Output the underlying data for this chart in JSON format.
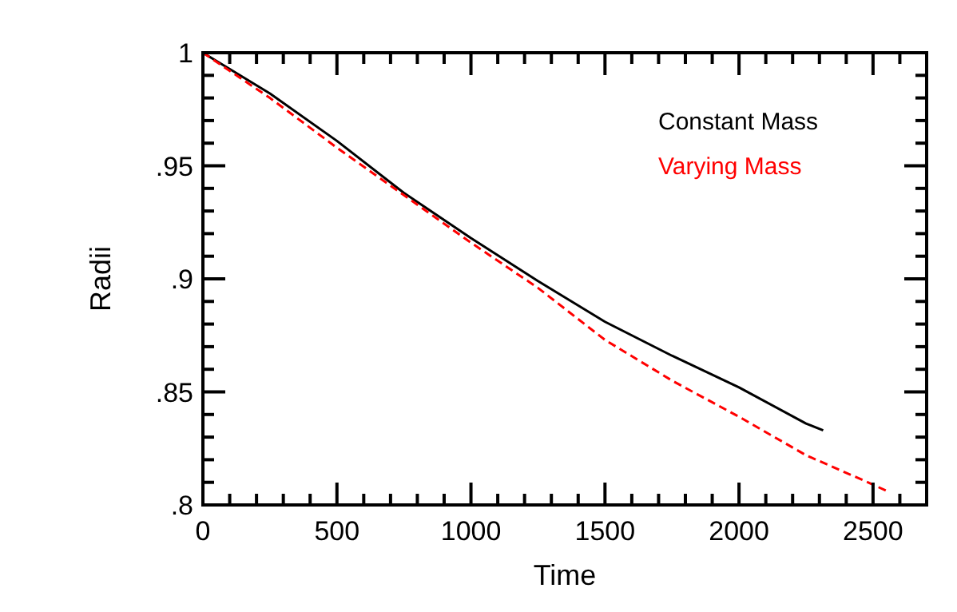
{
  "chart_data": {
    "type": "line",
    "xlabel": "Time",
    "ylabel": "Radii",
    "xlim": [
      0,
      2700
    ],
    "ylim": [
      0.8,
      1
    ],
    "xticks": [
      0,
      {
        "value": 100,
        "label": null
      },
      {
        "value": 200,
        "label": null
      },
      {
        "value": 300,
        "label": null
      },
      {
        "value": 400,
        "label": null
      },
      500,
      {
        "value": 600,
        "label": null
      },
      {
        "value": 700,
        "label": null
      },
      {
        "value": 800,
        "label": null
      },
      {
        "value": 900,
        "label": null
      },
      1000,
      {
        "value": 1100,
        "label": null
      },
      {
        "value": 1200,
        "label": null
      },
      {
        "value": 1300,
        "label": null
      },
      {
        "value": 1400,
        "label": null
      },
      1500,
      {
        "value": 1600,
        "label": null
      },
      {
        "value": 1700,
        "label": null
      },
      {
        "value": 1800,
        "label": null
      },
      {
        "value": 1900,
        "label": null
      },
      2000,
      {
        "value": 2100,
        "label": null
      },
      {
        "value": 2200,
        "label": null
      },
      {
        "value": 2300,
        "label": null
      },
      {
        "value": 2400,
        "label": null
      },
      2500,
      {
        "value": 2600,
        "label": null
      }
    ],
    "yticks": [
      {
        "value": 0.8,
        "label": ".8"
      },
      {
        "value": 0.81,
        "label": null
      },
      {
        "value": 0.82,
        "label": null
      },
      {
        "value": 0.83,
        "label": null
      },
      {
        "value": 0.84,
        "label": null
      },
      {
        "value": 0.85,
        "label": ".85"
      },
      {
        "value": 0.86,
        "label": null
      },
      {
        "value": 0.87,
        "label": null
      },
      {
        "value": 0.88,
        "label": null
      },
      {
        "value": 0.89,
        "label": null
      },
      {
        "value": 0.9,
        "label": ".9"
      },
      {
        "value": 0.91,
        "label": null
      },
      {
        "value": 0.92,
        "label": null
      },
      {
        "value": 0.93,
        "label": null
      },
      {
        "value": 0.94,
        "label": null
      },
      {
        "value": 0.95,
        "label": ".95"
      },
      {
        "value": 0.96,
        "label": null
      },
      {
        "value": 0.97,
        "label": null
      },
      {
        "value": 0.98,
        "label": null
      },
      {
        "value": 0.99,
        "label": null
      },
      {
        "value": 1,
        "label": "1"
      }
    ],
    "grid": false,
    "legend": "top right",
    "series": [
      {
        "name": "Constant Mass",
        "color": "#000000",
        "line_style": "solid",
        "x": [
          0,
          250,
          500,
          750,
          1000,
          1250,
          1500,
          1750,
          2000,
          2250,
          2314
        ],
        "values": [
          1,
          0.982,
          0.961,
          0.938,
          0.918,
          0.899,
          0.881,
          0.866,
          0.852,
          0.836,
          0.833
        ]
      },
      {
        "name": "Varying Mass",
        "color": "#ff0000",
        "line_style": "dashed",
        "x": [
          0,
          250,
          500,
          750,
          1000,
          1250,
          1500,
          1750,
          2000,
          2250,
          2500,
          2554
        ],
        "values": [
          1,
          0.98,
          0.958,
          0.937,
          0.916,
          0.896,
          0.873,
          0.855,
          0.839,
          0.822,
          0.809,
          0.806
        ]
      }
    ]
  }
}
